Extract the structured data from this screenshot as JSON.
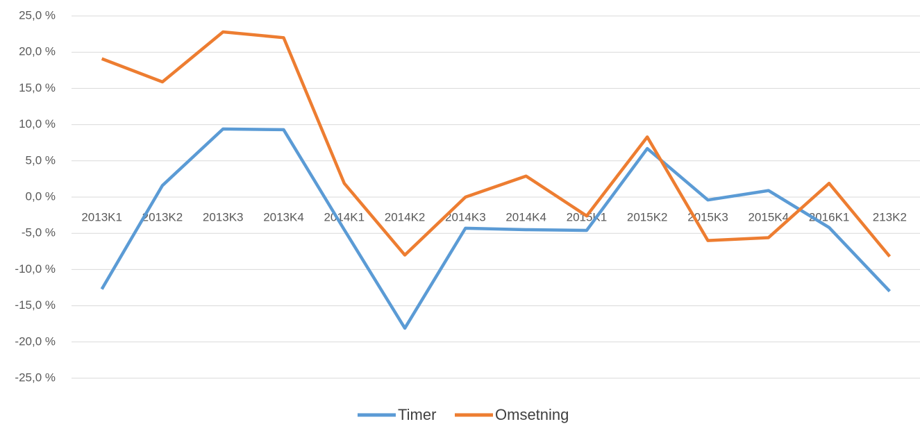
{
  "chart_data": {
    "type": "line",
    "categories": [
      "2013K1",
      "2013K2",
      "2013K3",
      "2013K4",
      "2014K1",
      "2014K2",
      "2014K3",
      "2014K4",
      "2015K1",
      "2015K2",
      "2015K3",
      "2015K4",
      "2016K1",
      "213K2"
    ],
    "series": [
      {
        "name": "Timer",
        "color": "#5b9bd5",
        "values": [
          -12.7,
          1.6,
          9.4,
          9.3,
          -4.5,
          -18.1,
          -4.3,
          -4.5,
          -4.6,
          6.7,
          -0.4,
          0.9,
          -4.2,
          -13.0
        ]
      },
      {
        "name": "Omsetning",
        "color": "#ed7d31",
        "values": [
          19.1,
          15.9,
          22.8,
          22.0,
          1.9,
          -8.0,
          0.0,
          2.9,
          -2.6,
          8.3,
          -6.0,
          -5.6,
          1.9,
          -8.2
        ]
      }
    ],
    "ylim": [
      -25,
      25
    ],
    "yticks": [
      {
        "value": -25,
        "label": "-25,0 %"
      },
      {
        "value": -20,
        "label": "-20,0 %"
      },
      {
        "value": -15,
        "label": "-15,0 %"
      },
      {
        "value": -10,
        "label": "-10,0 %"
      },
      {
        "value": -5,
        "label": "-5,0 %"
      },
      {
        "value": 0,
        "label": "0,0 %"
      },
      {
        "value": 5,
        "label": "5,0 %"
      },
      {
        "value": 10,
        "label": "10,0 %"
      },
      {
        "value": 15,
        "label": "15,0 %"
      },
      {
        "value": 20,
        "label": "20,0 %"
      },
      {
        "value": 25,
        "label": "25,0 %"
      }
    ],
    "grid": true,
    "legend": "bottom"
  }
}
